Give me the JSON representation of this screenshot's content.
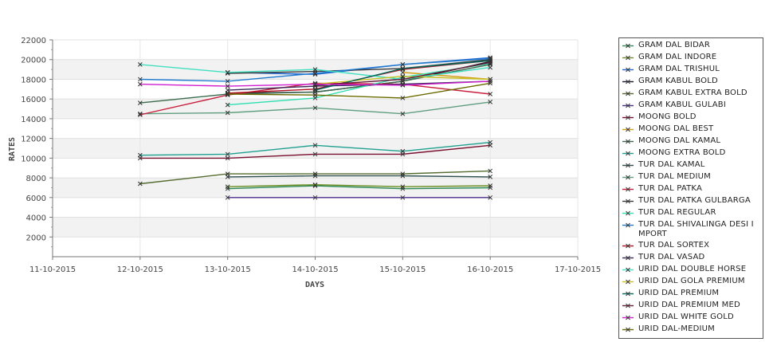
{
  "chart_data": {
    "type": "line",
    "xlabel": "DAYS",
    "ylabel": "RATES",
    "x_ticks": [
      "11-10-2015",
      "12-10-2015",
      "13-10-2015",
      "14-10-2015",
      "15-10-2015",
      "16-10-2015",
      "17-10-2015"
    ],
    "y_ticks": [
      2000,
      4000,
      6000,
      8000,
      10000,
      12000,
      14000,
      16000,
      18000,
      20000,
      22000
    ],
    "ylim": [
      0,
      22000
    ],
    "grid": true,
    "legend_position": "right",
    "series": [
      {
        "name": "GRAM DAL BIDAR",
        "color": "#2e8b57",
        "points": [
          [
            "13-10-2015",
            6900
          ],
          [
            "14-10-2015",
            7200
          ],
          [
            "15-10-2015",
            6900
          ],
          [
            "16-10-2015",
            7000
          ]
        ]
      },
      {
        "name": "GRAM DAL INDORE",
        "color": "#6b8e23",
        "points": [
          [
            "13-10-2015",
            7100
          ],
          [
            "14-10-2015",
            7300
          ],
          [
            "15-10-2015",
            7100
          ],
          [
            "16-10-2015",
            7200
          ]
        ]
      },
      {
        "name": "GRAM DAL TRISHUL",
        "color": "#1e66d0",
        "points": [
          [
            "13-10-2015",
            18700
          ],
          [
            "14-10-2015",
            18500
          ],
          [
            "15-10-2015",
            19500
          ],
          [
            "16-10-2015",
            20200
          ]
        ]
      },
      {
        "name": "GRAM KABUL BOLD",
        "color": "#1a1a2e",
        "points": [
          [
            "13-10-2015",
            16600
          ],
          [
            "14-10-2015",
            16700
          ],
          [
            "15-10-2015",
            17800
          ],
          [
            "16-10-2015",
            19800
          ]
        ]
      },
      {
        "name": "GRAM KABUL EXTRA BOLD",
        "color": "#556b2f",
        "points": [
          [
            "12-10-2015",
            7400
          ],
          [
            "13-10-2015",
            8400
          ],
          [
            "14-10-2015",
            8400
          ],
          [
            "15-10-2015",
            8400
          ],
          [
            "16-10-2015",
            8700
          ]
        ]
      },
      {
        "name": "GRAM KABUL GULABI",
        "color": "#4b2c8c",
        "points": [
          [
            "13-10-2015",
            6000
          ],
          [
            "14-10-2015",
            6000
          ],
          [
            "15-10-2015",
            6000
          ],
          [
            "16-10-2015",
            6000
          ]
        ]
      },
      {
        "name": "MOONG BOLD",
        "color": "#7a1030",
        "points": [
          [
            "12-10-2015",
            10000
          ],
          [
            "13-10-2015",
            10000
          ],
          [
            "14-10-2015",
            10400
          ],
          [
            "15-10-2015",
            10400
          ],
          [
            "16-10-2015",
            11300
          ]
        ]
      },
      {
        "name": "MOONG DAL BEST",
        "color": "#d4a017",
        "points": [
          [
            "15-10-2015",
            18700
          ],
          [
            "16-10-2015",
            18000
          ]
        ]
      },
      {
        "name": "MOONG DAL KAMAL",
        "color": "#3d6b4f",
        "points": [
          [
            "12-10-2015",
            15600
          ],
          [
            "13-10-2015",
            16500
          ],
          [
            "14-10-2015",
            16700
          ],
          [
            "15-10-2015",
            17800
          ],
          [
            "16-10-2015",
            19500
          ]
        ]
      },
      {
        "name": "MOONG EXTRA BOLD",
        "color": "#20a090",
        "points": [
          [
            "12-10-2015",
            10300
          ],
          [
            "13-10-2015",
            10400
          ],
          [
            "14-10-2015",
            11300
          ],
          [
            "15-10-2015",
            10700
          ],
          [
            "16-10-2015",
            11600
          ]
        ]
      },
      {
        "name": "TUR DAL KAMAL",
        "color": "#2f4f4f",
        "points": [
          [
            "13-10-2015",
            8100
          ],
          [
            "14-10-2015",
            8200
          ],
          [
            "15-10-2015",
            8200
          ],
          [
            "16-10-2015",
            8100
          ]
        ]
      },
      {
        "name": "TUR DAL MEDIUM",
        "color": "#5f9e7f",
        "points": [
          [
            "12-10-2015",
            14500
          ],
          [
            "13-10-2015",
            14600
          ],
          [
            "14-10-2015",
            15100
          ],
          [
            "15-10-2015",
            14500
          ],
          [
            "16-10-2015",
            15700
          ]
        ]
      },
      {
        "name": "TUR DAL PATKA",
        "color": "#c81e3c",
        "points": [
          [
            "12-10-2015",
            14400
          ],
          [
            "13-10-2015",
            16400
          ],
          [
            "14-10-2015",
            17600
          ],
          [
            "15-10-2015",
            17500
          ],
          [
            "16-10-2015",
            16500
          ]
        ]
      },
      {
        "name": "TUR DAL PATKA GULBARGA",
        "color": "#3a3a3a",
        "points": [
          [
            "13-10-2015",
            18600
          ],
          [
            "14-10-2015",
            18800
          ],
          [
            "15-10-2015",
            19100
          ],
          [
            "16-10-2015",
            20000
          ]
        ]
      },
      {
        "name": "TUR DAL REGULAR",
        "color": "#2ee0b0",
        "points": [
          [
            "13-10-2015",
            15400
          ],
          [
            "14-10-2015",
            16100
          ],
          [
            "15-10-2015",
            18200
          ],
          [
            "16-10-2015",
            19600
          ]
        ]
      },
      {
        "name": "TUR DAL SHIVALINGA DESI IMPORT",
        "color": "#1f7acf",
        "points": [
          [
            "12-10-2015",
            18000
          ],
          [
            "13-10-2015",
            17800
          ],
          [
            "14-10-2015",
            18600
          ],
          [
            "15-10-2015",
            19500
          ],
          [
            "16-10-2015",
            20100
          ]
        ]
      },
      {
        "name": "TUR DAL SORTEX",
        "color": "#b01020",
        "points": [
          [
            "13-10-2015",
            16600
          ],
          [
            "14-10-2015",
            17000
          ],
          [
            "15-10-2015",
            19000
          ],
          [
            "16-10-2015",
            19900
          ]
        ]
      },
      {
        "name": "TUR DAL VASAD",
        "color": "#3b2a5a",
        "points": [
          [
            "13-10-2015",
            16900
          ],
          [
            "14-10-2015",
            17300
          ],
          [
            "15-10-2015",
            17500
          ],
          [
            "16-10-2015",
            17800
          ]
        ]
      },
      {
        "name": "URID DAL DOUBLE HORSE",
        "color": "#40e0c0",
        "points": [
          [
            "12-10-2015",
            19500
          ],
          [
            "13-10-2015",
            18700
          ],
          [
            "14-10-2015",
            19000
          ],
          [
            "15-10-2015",
            18000
          ],
          [
            "16-10-2015",
            19200
          ]
        ]
      },
      {
        "name": "URID DAL GOLA PREMIUM",
        "color": "#c8c020",
        "points": [
          [
            "14-10-2015",
            17500
          ],
          [
            "15-10-2015",
            18300
          ],
          [
            "16-10-2015",
            18000
          ]
        ]
      },
      {
        "name": "URID DAL PREMIUM",
        "color": "#00695c",
        "points": [
          [
            "14-10-2015",
            16900
          ],
          [
            "15-10-2015",
            19100
          ],
          [
            "16-10-2015",
            19900
          ]
        ]
      },
      {
        "name": "URID DAL PREMIUM MED",
        "color": "#6a1a3a",
        "points": [
          [
            "14-10-2015",
            17400
          ],
          [
            "15-10-2015",
            18000
          ],
          [
            "16-10-2015",
            19700
          ]
        ]
      },
      {
        "name": "URID DAL WHITE GOLD",
        "color": "#d020d0",
        "points": [
          [
            "12-10-2015",
            17500
          ],
          [
            "13-10-2015",
            17300
          ],
          [
            "14-10-2015",
            17500
          ],
          [
            "15-10-2015",
            17400
          ],
          [
            "16-10-2015",
            17800
          ]
        ]
      },
      {
        "name": "URID DAL-MEDIUM",
        "color": "#6b6b00",
        "points": [
          [
            "13-10-2015",
            16500
          ],
          [
            "14-10-2015",
            16400
          ],
          [
            "15-10-2015",
            16100
          ],
          [
            "16-10-2015",
            17600
          ]
        ]
      }
    ]
  }
}
